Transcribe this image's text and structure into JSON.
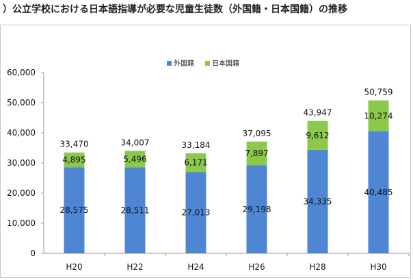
{
  "title": "）公立学校における日本語指導が必要な児童生徒数（外国籍・日本国籍）の推移",
  "chart_data": {
    "type": "bar",
    "stacked": true,
    "title": "）公立学校における日本語指導が必要な児童生徒数（外国籍・日本国籍）の推移",
    "categories": [
      "H20",
      "H22",
      "H24",
      "H26",
      "H28",
      "H30"
    ],
    "series": [
      {
        "name": "外国籍",
        "values": [
          28575,
          28511,
          27013,
          29198,
          34335,
          40485
        ],
        "color": "#4f86d4"
      },
      {
        "name": "日本国籍",
        "values": [
          4895,
          5496,
          6171,
          7897,
          9612,
          10274
        ],
        "color": "#8cc84b"
      }
    ],
    "totals": [
      33470,
      34007,
      33184,
      37095,
      43947,
      50759
    ],
    "segment_labels": [
      [
        "28,575",
        "28,511",
        "27,013",
        "29,198",
        "34,335",
        "40,485"
      ],
      [
        "4,895",
        "5,496",
        "6,171",
        "7,897",
        "9,612",
        "10,274"
      ]
    ],
    "total_labels": [
      "33,470",
      "34,007",
      "33,184",
      "37,095",
      "43,947",
      "50,759"
    ],
    "yticks": [
      0,
      10000,
      20000,
      30000,
      40000,
      50000,
      60000
    ],
    "ytick_labels": [
      "0",
      "10,000",
      "20,000",
      "30,000",
      "40,000",
      "50,000",
      "60,000"
    ],
    "ylim": [
      0,
      60000
    ],
    "grid": false,
    "legend_position": "top-center",
    "xlabel": "",
    "ylabel": ""
  }
}
